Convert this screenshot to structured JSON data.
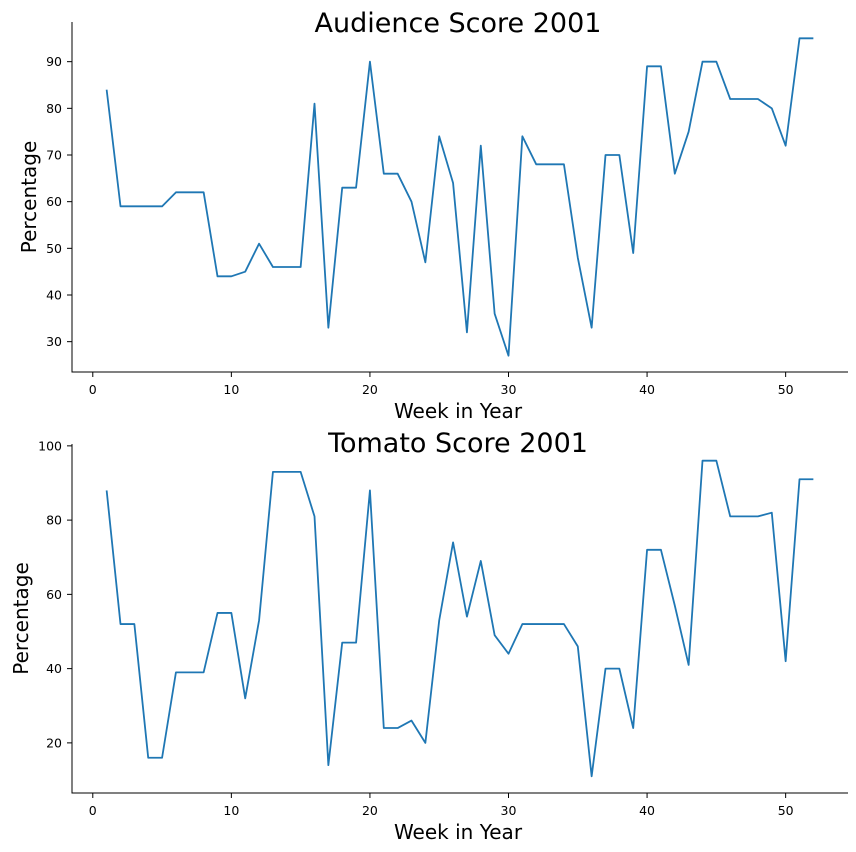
{
  "chart_data": [
    {
      "type": "line",
      "title": "Audience Score 2001",
      "xlabel": "Week in Year",
      "ylabel": "Percentage",
      "xlim": [
        -1.5,
        54.5
      ],
      "ylim": [
        23.5,
        98.5
      ],
      "xticks": [
        0,
        10,
        20,
        30,
        40,
        50
      ],
      "yticks": [
        30,
        40,
        50,
        60,
        70,
        80,
        90
      ],
      "grid": false,
      "color": "#1f77b4",
      "series": [
        {
          "x": [
            1,
            2,
            3,
            4,
            5,
            6,
            7,
            8,
            9,
            10,
            11,
            12,
            13,
            14,
            15,
            16,
            17,
            18,
            19,
            20,
            21,
            22,
            23,
            24,
            25,
            26,
            27,
            28,
            29,
            30,
            31,
            32,
            33,
            34,
            35,
            36,
            37,
            38,
            39,
            40,
            41,
            42,
            43,
            44,
            45,
            46,
            47,
            48,
            49,
            50,
            51,
            52
          ],
          "values": [
            84,
            59,
            59,
            59,
            59,
            62,
            62,
            62,
            44,
            44,
            45,
            51,
            46,
            46,
            46,
            81,
            33,
            63,
            63,
            90,
            66,
            66,
            60,
            47,
            74,
            64,
            32,
            72,
            36,
            27,
            74,
            68,
            68,
            68,
            48,
            33,
            70,
            70,
            49,
            89,
            89,
            66,
            75,
            90,
            90,
            82,
            82,
            82,
            80,
            72,
            95,
            95
          ]
        }
      ]
    },
    {
      "type": "line",
      "title": "Tomato Score 2001",
      "xlabel": "Week in Year",
      "ylabel": "Percentage",
      "xlim": [
        -1.5,
        54.5
      ],
      "ylim": [
        6.5,
        100.5
      ],
      "xticks": [
        0,
        10,
        20,
        30,
        40,
        50
      ],
      "yticks": [
        20,
        40,
        60,
        80,
        100
      ],
      "grid": false,
      "color": "#1f77b4",
      "series": [
        {
          "x": [
            1,
            2,
            3,
            4,
            5,
            6,
            7,
            8,
            9,
            10,
            11,
            12,
            13,
            14,
            15,
            16,
            17,
            18,
            19,
            20,
            21,
            22,
            23,
            24,
            25,
            26,
            27,
            28,
            29,
            30,
            31,
            32,
            33,
            34,
            35,
            36,
            37,
            38,
            39,
            40,
            41,
            42,
            43,
            44,
            45,
            46,
            47,
            48,
            49,
            50,
            51,
            52
          ],
          "values": [
            88,
            52,
            52,
            16,
            16,
            39,
            39,
            39,
            55,
            55,
            32,
            53,
            93,
            93,
            93,
            81,
            14,
            47,
            47,
            88,
            24,
            24,
            26,
            20,
            53,
            74,
            54,
            69,
            49,
            44,
            52,
            52,
            52,
            52,
            46,
            11,
            40,
            40,
            24,
            72,
            72,
            57,
            41,
            96,
            96,
            81,
            81,
            81,
            82,
            42,
            91,
            91
          ]
        }
      ]
    }
  ]
}
